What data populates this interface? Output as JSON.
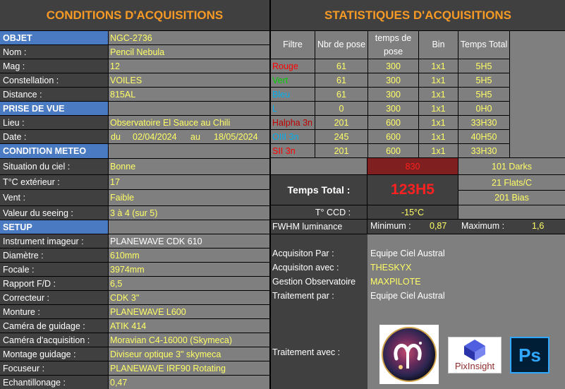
{
  "left": {
    "title": "CONDITIONS D'ACQUISITIONS",
    "objet": {
      "header": "OBJET",
      "header_value": "NGC-2736",
      "rows": [
        {
          "label": "Nom :",
          "value": "Pencil Nebula"
        },
        {
          "label": "Mag :",
          "value": "12"
        },
        {
          "label": "Constellation :",
          "value": "VOILES"
        },
        {
          "label": "Distance :",
          "value": "815AL"
        }
      ]
    },
    "prise": {
      "header": "PRISE DE VUE",
      "lieu_label": "Lieu :",
      "lieu_value": "Observatoire El Sauce au Chili",
      "date_label": "Date :",
      "date_du": "du",
      "date_from": "02/04/2024",
      "date_au": "au",
      "date_to": "18/05/2024"
    },
    "meteo": {
      "header": "CONDITION METEO",
      "rows": [
        {
          "label": "Situation du ciel  :",
          "value": "Bonne"
        },
        {
          "label": "T°C extérieur :",
          "value": "17"
        },
        {
          "label": "Vent :",
          "value": "Faible"
        },
        {
          "label": "Valeur du seeing  :",
          "value": "3 à 4   (sur 5)"
        }
      ]
    },
    "setup": {
      "header": "SETUP",
      "rows": [
        {
          "label": "Instrument imageur :",
          "value": "PLANEWAVE CDK 610"
        },
        {
          "label": "Diamètre :",
          "value": "610mm"
        },
        {
          "label": "Focale :",
          "value": "3974mm"
        },
        {
          "label": "Rapport F/D :",
          "value": "6,5"
        },
        {
          "label": "Correcteur :",
          "value": "CDK 3\""
        },
        {
          "label": "Monture :",
          "value": "PLANEWAVE L600"
        },
        {
          "label": "Caméra de guidage :",
          "value": "ATIK 414"
        },
        {
          "label": "Caméra d'acquisition :",
          "value": "Moravian C4-16000 (Skymeca)"
        },
        {
          "label": "Montage guidage :",
          "value": "Diviseur optique 3\" skymeca"
        },
        {
          "label": "Focuseur :",
          "value": "PLANEWAVE IRF90 Rotating"
        },
        {
          "label": "Echantillonage :",
          "value": "0,47"
        }
      ]
    }
  },
  "right": {
    "title": "STATISTIQUES D'ACQUISITIONS",
    "table": {
      "headers": {
        "filtre": "Filtre",
        "nbr": "Nbr de pose",
        "temps": "temps de pose",
        "bin": "Bin",
        "total": "Temps Total"
      },
      "rows": [
        {
          "filtre": "Rouge",
          "nbr": "61",
          "temps": "300",
          "bin": "1x1",
          "total": "5H5"
        },
        {
          "filtre": "Vert",
          "nbr": "61",
          "temps": "300",
          "bin": "1x1",
          "total": "5H5"
        },
        {
          "filtre": "Bleu",
          "nbr": "61",
          "temps": "300",
          "bin": "1x1",
          "total": "5H5"
        },
        {
          "filtre": "L",
          "nbr": "0",
          "temps": "300",
          "bin": "1x1",
          "total": "0H0"
        },
        {
          "filtre": "Halpha 3n",
          "nbr": "201",
          "temps": "600",
          "bin": "1x1",
          "total": "33H30"
        },
        {
          "filtre": "OIII 3n",
          "nbr": "245",
          "temps": "600",
          "bin": "1x1",
          "total": "40H50"
        },
        {
          "filtre": "SII 3n",
          "nbr": "201",
          "temps": "600",
          "bin": "1x1",
          "total": "33H30"
        }
      ]
    },
    "total_poses": "830",
    "darks": "101 Darks",
    "flats": "21 Flats/C",
    "bias": "201 Bias",
    "temps_total_label": "Temps Total :",
    "temps_total_value": "123H5",
    "ccd_label": "T° CCD :",
    "ccd_value": "-15°C",
    "fwhm_label": "FWHM luminance",
    "min_label": "Minimum :",
    "min_value": "0,87",
    "max_label": "Maximum :",
    "max_value": "1,6",
    "info": [
      {
        "label": "Acquisiton Par :",
        "value": "Equipe Ciel Austral"
      },
      {
        "label": "Acquisiton avec :",
        "value": "THESKYX"
      },
      {
        "label": "Gestion Observatoire",
        "value": "MAXPILOTE"
      },
      {
        "label": "Traitement par :",
        "value": "Equipe Ciel Austral"
      }
    ],
    "traitement_avec_label": "Traitement avec :",
    "logos": {
      "pixinsight": "PixInsight",
      "photoshop": "Ps"
    },
    "colors": {
      "rouge": "#ff0000",
      "vert": "#00d000",
      "bleu": "#00b0f0",
      "l": "#00b0f0",
      "halpha": "#c00000",
      "oiii": "#00b0f0",
      "sii": "#ff0000",
      "accent": "#f79a25",
      "value": "#ffff66"
    }
  }
}
